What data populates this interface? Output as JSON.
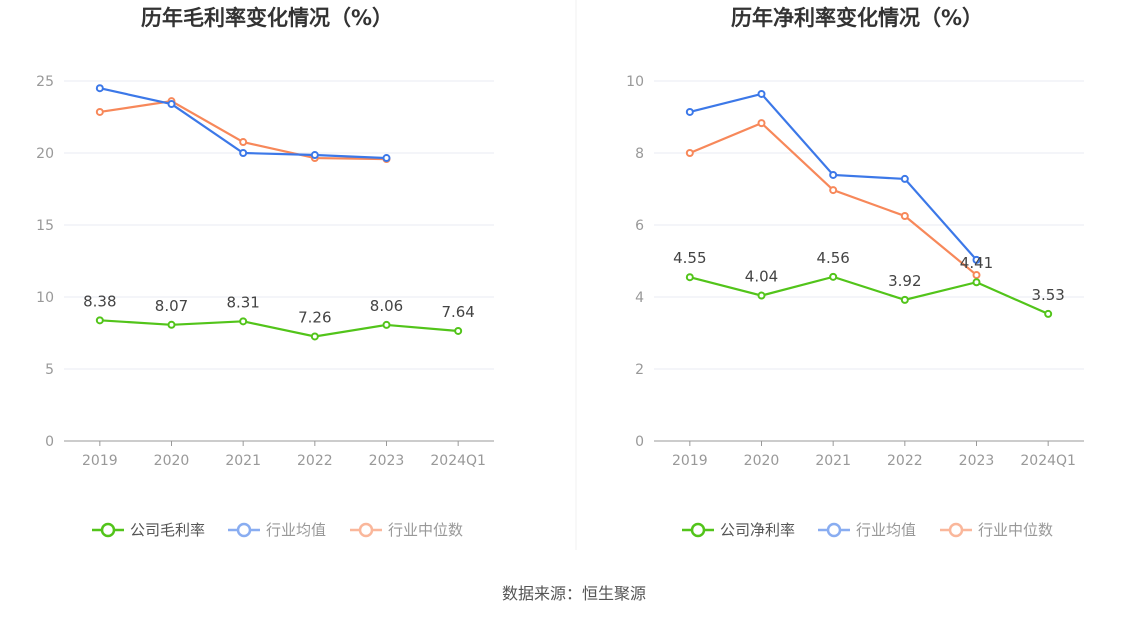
{
  "source": "数据来源：恒生聚源",
  "colors": {
    "company": "#52c41a",
    "avg": "#3c78e8",
    "median": "#f7885a",
    "grid": "#e8ebf3",
    "axis": "#999999"
  },
  "chart_data": [
    {
      "type": "line",
      "title": "历年毛利率变化情况（%）",
      "categories": [
        "2019",
        "2020",
        "2021",
        "2022",
        "2023",
        "2024Q1"
      ],
      "ylim": [
        0,
        25
      ],
      "yticks": [
        0,
        5,
        10,
        15,
        20,
        25
      ],
      "grid": true,
      "legend_position": "bottom",
      "series": [
        {
          "name": "公司毛利率",
          "key": "company",
          "values": [
            8.38,
            8.07,
            8.31,
            7.26,
            8.06,
            7.64
          ],
          "labels": true
        },
        {
          "name": "行业均值",
          "key": "avg",
          "values": [
            24.5,
            23.4,
            20.0,
            19.86,
            19.65,
            null
          ]
        },
        {
          "name": "行业中位数",
          "key": "median",
          "values": [
            22.85,
            23.6,
            20.76,
            19.65,
            19.58,
            null
          ]
        }
      ]
    },
    {
      "type": "line",
      "title": "历年净利率变化情况（%）",
      "categories": [
        "2019",
        "2020",
        "2021",
        "2022",
        "2023",
        "2024Q1"
      ],
      "ylim": [
        0,
        10
      ],
      "yticks": [
        0,
        2,
        4,
        6,
        8,
        10
      ],
      "grid": true,
      "legend_position": "bottom",
      "series": [
        {
          "name": "公司净利率",
          "key": "company",
          "values": [
            4.55,
            4.04,
            4.56,
            3.92,
            4.41,
            3.53
          ],
          "labels": true
        },
        {
          "name": "行业均值",
          "key": "avg",
          "values": [
            9.14,
            9.64,
            7.39,
            7.28,
            5.03,
            null
          ]
        },
        {
          "name": "行业中位数",
          "key": "median",
          "values": [
            8.0,
            8.83,
            6.97,
            6.25,
            4.61,
            null
          ]
        }
      ]
    }
  ]
}
